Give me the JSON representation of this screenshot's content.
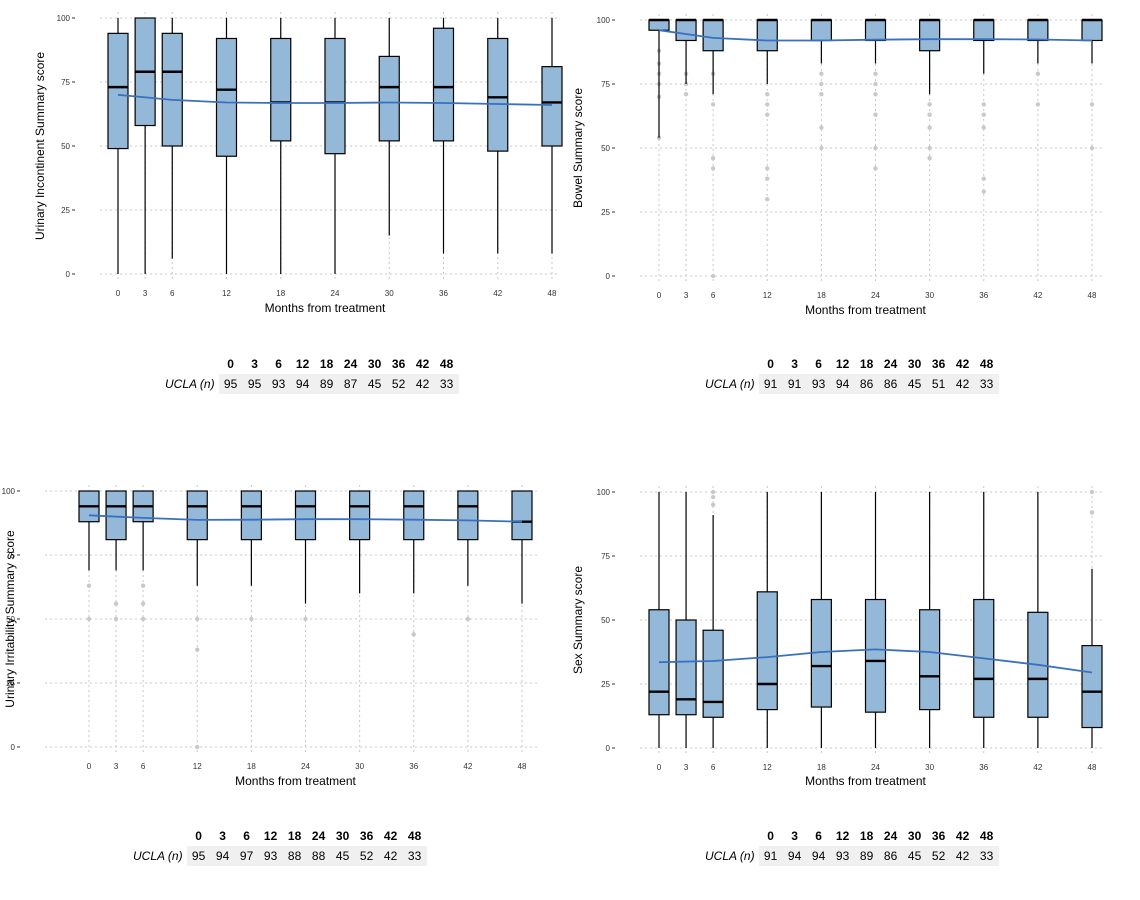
{
  "colors": {
    "box_fill": "#94b8d8",
    "box_stroke": "#000000",
    "smooth_line": "#3a70c0",
    "outlier": "#c9c9c9",
    "grid": "#c8c8c8"
  },
  "chart_data": [
    {
      "type": "box",
      "xlabel": "Months from treatment",
      "ylabel": "Urinary Incontinent Summary score",
      "ylim": [
        0,
        100
      ],
      "y_ticks": [
        0,
        25,
        50,
        75,
        100
      ],
      "x_ticks": [
        0,
        3,
        6,
        12,
        18,
        24,
        30,
        36,
        42,
        48
      ],
      "grid": "dotted",
      "boxes": [
        {
          "x": 0,
          "min": 0,
          "q1": 49,
          "median": 73,
          "q3": 94,
          "max": 100,
          "outliers": []
        },
        {
          "x": 3,
          "min": 0,
          "q1": 58,
          "median": 79,
          "q3": 100,
          "max": 100,
          "outliers": []
        },
        {
          "x": 6,
          "min": 6,
          "q1": 50,
          "median": 79,
          "q3": 94,
          "max": 100,
          "outliers": []
        },
        {
          "x": 12,
          "min": 0,
          "q1": 46,
          "median": 72,
          "q3": 92,
          "max": 100,
          "outliers": []
        },
        {
          "x": 18,
          "min": 0,
          "q1": 52,
          "median": 67,
          "q3": 92,
          "max": 100,
          "outliers": []
        },
        {
          "x": 24,
          "min": 0,
          "q1": 47,
          "median": 67,
          "q3": 92,
          "max": 100,
          "outliers": []
        },
        {
          "x": 30,
          "min": 15,
          "q1": 52,
          "median": 73,
          "q3": 85,
          "max": 100,
          "outliers": []
        },
        {
          "x": 36,
          "min": 8,
          "q1": 52,
          "median": 73,
          "q3": 96,
          "max": 100,
          "outliers": []
        },
        {
          "x": 42,
          "min": 8,
          "q1": 48,
          "median": 69,
          "q3": 92,
          "max": 100,
          "outliers": []
        },
        {
          "x": 48,
          "min": 8,
          "q1": 50,
          "median": 67,
          "q3": 81,
          "max": 100,
          "outliers": []
        }
      ],
      "smooth": [
        [
          0,
          70
        ],
        [
          6,
          68
        ],
        [
          12,
          67
        ],
        [
          18,
          66.8
        ],
        [
          24,
          66.8
        ],
        [
          30,
          67
        ],
        [
          36,
          66.8
        ],
        [
          42,
          66.4
        ],
        [
          48,
          66
        ]
      ],
      "n_table": {
        "row_label": "UCLA (n)",
        "months": [
          0,
          3,
          6,
          12,
          18,
          24,
          30,
          36,
          42,
          48
        ],
        "n": [
          95,
          95,
          93,
          94,
          89,
          87,
          45,
          52,
          42,
          33
        ]
      }
    },
    {
      "type": "box",
      "xlabel": "Months from treatment",
      "ylabel": "Bowel Summary score",
      "ylim": [
        0,
        100
      ],
      "y_ticks": [
        0,
        25,
        50,
        75,
        100
      ],
      "x_ticks": [
        0,
        3,
        6,
        12,
        18,
        24,
        30,
        36,
        42,
        48
      ],
      "grid": "dotted",
      "boxes": [
        {
          "x": 0,
          "min": 54,
          "q1": 96,
          "median": 100,
          "q3": 100,
          "max": 100,
          "outliers": [
            54,
            70,
            75,
            79,
            83,
            88
          ]
        },
        {
          "x": 3,
          "min": 75,
          "q1": 92,
          "median": 100,
          "q3": 100,
          "max": 100,
          "outliers": [
            71,
            75,
            79
          ]
        },
        {
          "x": 6,
          "min": 71,
          "q1": 88,
          "median": 100,
          "q3": 100,
          "max": 100,
          "outliers": [
            0,
            42,
            46,
            67,
            79
          ]
        },
        {
          "x": 12,
          "min": 75,
          "q1": 88,
          "median": 100,
          "q3": 100,
          "max": 100,
          "outliers": [
            30,
            38,
            42,
            63,
            67,
            71
          ]
        },
        {
          "x": 18,
          "min": 83,
          "q1": 92,
          "median": 100,
          "q3": 100,
          "max": 100,
          "outliers": [
            50,
            58,
            71,
            75,
            79
          ]
        },
        {
          "x": 24,
          "min": 83,
          "q1": 92,
          "median": 100,
          "q3": 100,
          "max": 100,
          "outliers": [
            42,
            50,
            63,
            71,
            75,
            79
          ]
        },
        {
          "x": 30,
          "min": 71,
          "q1": 88,
          "median": 100,
          "q3": 100,
          "max": 100,
          "outliers": [
            46,
            50,
            58,
            63,
            67
          ]
        },
        {
          "x": 36,
          "min": 79,
          "q1": 92,
          "median": 100,
          "q3": 100,
          "max": 100,
          "outliers": [
            33,
            38,
            58,
            63,
            67
          ]
        },
        {
          "x": 42,
          "min": 83,
          "q1": 92,
          "median": 100,
          "q3": 100,
          "max": 100,
          "outliers": [
            67,
            79
          ]
        },
        {
          "x": 48,
          "min": 83,
          "q1": 92,
          "median": 100,
          "q3": 100,
          "max": 100,
          "outliers": [
            50,
            67
          ]
        }
      ],
      "smooth": [
        [
          0,
          96
        ],
        [
          6,
          93
        ],
        [
          12,
          92
        ],
        [
          18,
          92
        ],
        [
          24,
          92.3
        ],
        [
          30,
          92.5
        ],
        [
          36,
          92.5
        ],
        [
          42,
          92.4
        ],
        [
          48,
          92
        ]
      ],
      "n_table": {
        "row_label": "UCLA (n)",
        "months": [
          0,
          3,
          6,
          12,
          18,
          24,
          30,
          36,
          42,
          48
        ],
        "n": [
          91,
          91,
          93,
          94,
          86,
          86,
          45,
          51,
          42,
          33
        ]
      }
    },
    {
      "type": "box",
      "xlabel": "Months from treatment",
      "ylabel": "Urinary Irritability Summary score",
      "ylim": [
        0,
        100
      ],
      "y_ticks": [
        0,
        25,
        50,
        75,
        100
      ],
      "x_ticks": [
        0,
        3,
        6,
        12,
        18,
        24,
        30,
        36,
        42,
        48
      ],
      "grid": "dotted",
      "boxes": [
        {
          "x": 0,
          "min": 69,
          "q1": 88,
          "median": 94,
          "q3": 100,
          "max": 100,
          "outliers": [
            50,
            63
          ]
        },
        {
          "x": 3,
          "min": 69,
          "q1": 81,
          "median": 94,
          "q3": 100,
          "max": 100,
          "outliers": [
            50,
            56
          ]
        },
        {
          "x": 6,
          "min": 69,
          "q1": 88,
          "median": 94,
          "q3": 100,
          "max": 100,
          "outliers": [
            50,
            56,
            63
          ]
        },
        {
          "x": 12,
          "min": 63,
          "q1": 81,
          "median": 94,
          "q3": 100,
          "max": 100,
          "outliers": [
            0,
            38,
            50
          ]
        },
        {
          "x": 18,
          "min": 63,
          "q1": 81,
          "median": 94,
          "q3": 100,
          "max": 100,
          "outliers": [
            50
          ]
        },
        {
          "x": 24,
          "min": 56,
          "q1": 81,
          "median": 94,
          "q3": 100,
          "max": 100,
          "outliers": [
            50
          ]
        },
        {
          "x": 30,
          "min": 60,
          "q1": 81,
          "median": 94,
          "q3": 100,
          "max": 100,
          "outliers": []
        },
        {
          "x": 36,
          "min": 60,
          "q1": 81,
          "median": 94,
          "q3": 100,
          "max": 100,
          "outliers": [
            44
          ]
        },
        {
          "x": 42,
          "min": 63,
          "q1": 81,
          "median": 94,
          "q3": 100,
          "max": 100,
          "outliers": [
            50
          ]
        },
        {
          "x": 48,
          "min": 56,
          "q1": 81,
          "median": 88,
          "q3": 100,
          "max": 100,
          "outliers": []
        }
      ],
      "smooth": [
        [
          0,
          90.5
        ],
        [
          6,
          89.5
        ],
        [
          12,
          88.7
        ],
        [
          18,
          88.8
        ],
        [
          24,
          89
        ],
        [
          30,
          89
        ],
        [
          36,
          88.8
        ],
        [
          42,
          88.5
        ],
        [
          48,
          88
        ]
      ],
      "n_table": {
        "row_label": "UCLA (n)",
        "months": [
          0,
          3,
          6,
          12,
          18,
          24,
          30,
          36,
          42,
          48
        ],
        "n": [
          95,
          94,
          97,
          93,
          88,
          88,
          45,
          52,
          42,
          33
        ]
      }
    },
    {
      "type": "box",
      "xlabel": "Months from treatment",
      "ylabel": "Sex Summary score",
      "ylim": [
        0,
        100
      ],
      "y_ticks": [
        0,
        25,
        50,
        75,
        100
      ],
      "x_ticks": [
        0,
        3,
        6,
        12,
        18,
        24,
        30,
        36,
        42,
        48
      ],
      "grid": "dotted",
      "boxes": [
        {
          "x": 0,
          "min": 0,
          "q1": 13,
          "median": 22,
          "q3": 54,
          "max": 100,
          "outliers": []
        },
        {
          "x": 3,
          "min": 0,
          "q1": 13,
          "median": 19,
          "q3": 50,
          "max": 100,
          "outliers": []
        },
        {
          "x": 6,
          "min": 0,
          "q1": 12,
          "median": 18,
          "q3": 46,
          "max": 91,
          "outliers": [
            95,
            98,
            100
          ]
        },
        {
          "x": 12,
          "min": 0,
          "q1": 15,
          "median": 25,
          "q3": 61,
          "max": 100,
          "outliers": []
        },
        {
          "x": 18,
          "min": 0,
          "q1": 16,
          "median": 32,
          "q3": 58,
          "max": 100,
          "outliers": []
        },
        {
          "x": 24,
          "min": 0,
          "q1": 14,
          "median": 34,
          "q3": 58,
          "max": 100,
          "outliers": []
        },
        {
          "x": 30,
          "min": 0,
          "q1": 15,
          "median": 28,
          "q3": 54,
          "max": 100,
          "outliers": []
        },
        {
          "x": 36,
          "min": 0,
          "q1": 12,
          "median": 27,
          "q3": 58,
          "max": 100,
          "outliers": []
        },
        {
          "x": 42,
          "min": 0,
          "q1": 12,
          "median": 27,
          "q3": 53,
          "max": 100,
          "outliers": []
        },
        {
          "x": 48,
          "min": 0,
          "q1": 8,
          "median": 22,
          "q3": 40,
          "max": 70,
          "outliers": [
            92,
            100
          ]
        }
      ],
      "smooth": [
        [
          0,
          33.5
        ],
        [
          6,
          34
        ],
        [
          12,
          35.5
        ],
        [
          18,
          37.5
        ],
        [
          24,
          38.5
        ],
        [
          30,
          37.5
        ],
        [
          36,
          35
        ],
        [
          42,
          32.5
        ],
        [
          48,
          29.5
        ]
      ],
      "n_table": {
        "row_label": "UCLA (n)",
        "months": [
          0,
          3,
          6,
          12,
          18,
          24,
          30,
          36,
          42,
          48
        ],
        "n": [
          91,
          94,
          94,
          93,
          89,
          86,
          45,
          52,
          42,
          33
        ]
      }
    }
  ]
}
